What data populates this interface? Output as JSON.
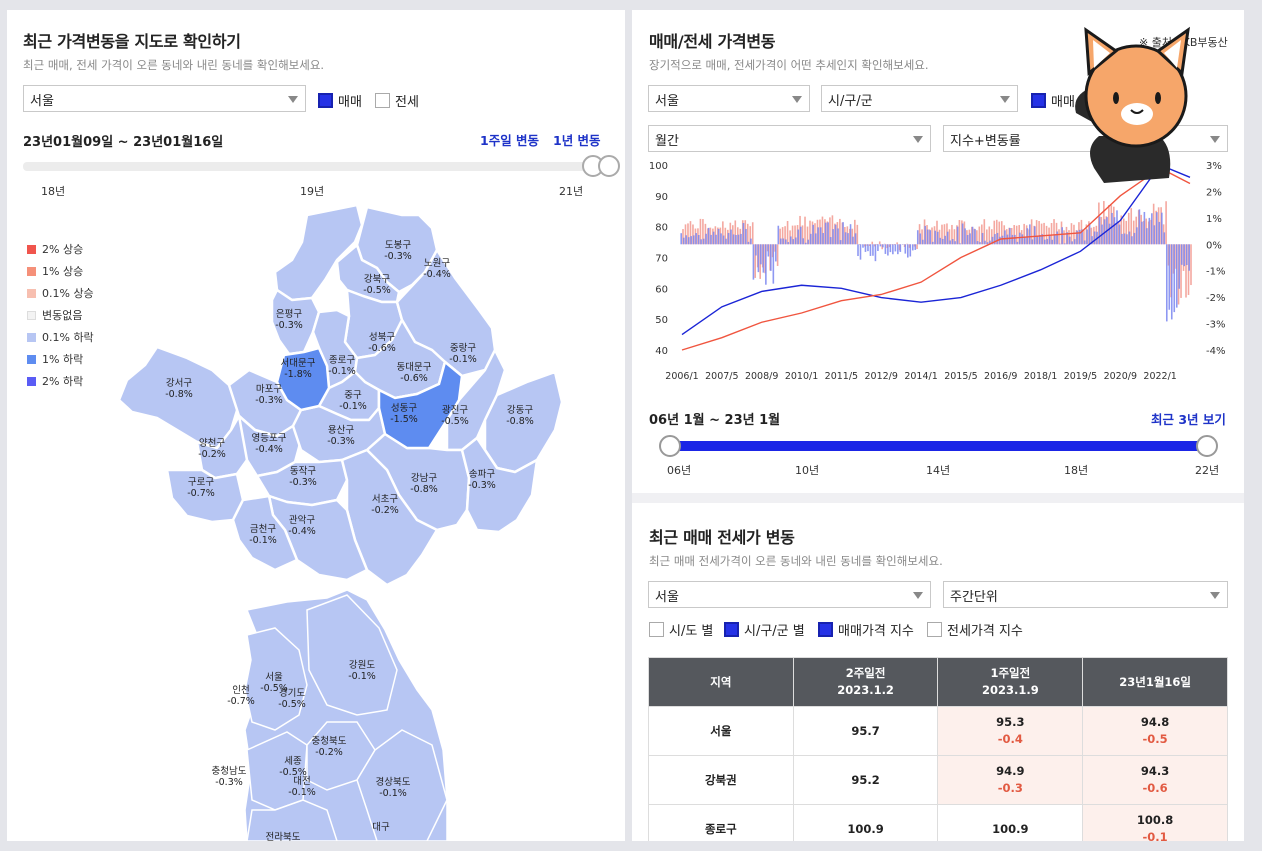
{
  "left": {
    "title": "최근 가격변동을 지도로 확인하기",
    "subtitle": "최근 매매, 전세 가격이 오른 동네와 내린 동네를 확인해보세요.",
    "region_select": "서울",
    "check_sale": "매매",
    "check_jeonse": "전세",
    "period": "23년01월09일 ~ 23년01월16일",
    "link_week": "1주일 변동",
    "link_year": "1년 변동",
    "slider_ticks": [
      "18년",
      "19년",
      "21년"
    ],
    "legend": [
      {
        "label": "2% 상승",
        "color": "#f0554d"
      },
      {
        "label": "1% 상승",
        "color": "#f59079"
      },
      {
        "label": "0.1% 상승",
        "color": "#f7bfb0"
      },
      {
        "label": "변동없음",
        "color": "#f3f3f3"
      },
      {
        "label": "0.1% 하락",
        "color": "#b7c6f3"
      },
      {
        "label": "1% 하락",
        "color": "#5e8cf0"
      },
      {
        "label": "2% 하락",
        "color": "#5a5cf5"
      }
    ],
    "seoul_districts": [
      {
        "name": "도봉구",
        "value": "-0.3%"
      },
      {
        "name": "노원구",
        "value": "-0.4%"
      },
      {
        "name": "강북구",
        "value": "-0.5%"
      },
      {
        "name": "은평구",
        "value": "-0.3%"
      },
      {
        "name": "성북구",
        "value": "-0.6%"
      },
      {
        "name": "중랑구",
        "value": "-0.1%"
      },
      {
        "name": "서대문구",
        "value": "-1.8%"
      },
      {
        "name": "종로구",
        "value": "-0.1%"
      },
      {
        "name": "동대문구",
        "value": "-0.6%"
      },
      {
        "name": "강서구",
        "value": "-0.8%"
      },
      {
        "name": "마포구",
        "value": "-0.3%"
      },
      {
        "name": "중구",
        "value": "-0.1%"
      },
      {
        "name": "성동구",
        "value": "-1.5%"
      },
      {
        "name": "광진구",
        "value": "-0.5%"
      },
      {
        "name": "강동구",
        "value": "-0.8%"
      },
      {
        "name": "양천구",
        "value": "-0.2%"
      },
      {
        "name": "영등포구",
        "value": "-0.4%"
      },
      {
        "name": "용산구",
        "value": "-0.3%"
      },
      {
        "name": "구로구",
        "value": "-0.7%"
      },
      {
        "name": "동작구",
        "value": "-0.3%"
      },
      {
        "name": "강남구",
        "value": "-0.8%"
      },
      {
        "name": "송파구",
        "value": "-0.3%"
      },
      {
        "name": "서초구",
        "value": "-0.2%"
      },
      {
        "name": "관악구",
        "value": "-0.4%"
      },
      {
        "name": "금천구",
        "value": "-0.1%"
      }
    ],
    "korea_regions": [
      {
        "name": "강원도",
        "value": "-0.1%"
      },
      {
        "name": "인천",
        "value": "-0.7%"
      },
      {
        "name": "서울",
        "value": "-0.5%"
      },
      {
        "name": "경기도",
        "value": "-0.5%"
      },
      {
        "name": "충청북도",
        "value": "-0.2%"
      },
      {
        "name": "충청남도",
        "value": "-0.3%"
      },
      {
        "name": "세종",
        "value": "-0.5%"
      },
      {
        "name": "대전",
        "value": "-0.1%"
      },
      {
        "name": "경상북도",
        "value": "-0.1%"
      },
      {
        "name": "대구",
        "value": ""
      },
      {
        "name": "전라북도",
        "value": ""
      }
    ]
  },
  "right": {
    "title": "매매/전세 가격변동",
    "source": "※ 출처 : KB부동산",
    "subtitle": "장기적으로 매매, 전세가격이 어떤 추세인지 확인해보세요.",
    "region_select": "서울",
    "district_select": "시/구/군",
    "check_sale": "매매",
    "period_select": "월간",
    "metric_select": "지수+변동률",
    "range_label": "06년 1월 ~ 23년 1월",
    "recent_link": "최근 3년 보기",
    "range_ticks": [
      "06년",
      "10년",
      "14년",
      "18년",
      "22년"
    ],
    "table_section": {
      "title": "최근 매매 전세가 변동",
      "subtitle": "최근 매매 전세가격이 오른 동네와 내린 동네를 확인해보세요.",
      "region_select": "서울",
      "unit_select": "주간단위",
      "checks": [
        "시/도 별",
        "시/구/군 별",
        "매매가격 지수",
        "전세가격 지수"
      ],
      "headers": [
        {
          "line1": "지역",
          "line2": ""
        },
        {
          "line1": "2주일전",
          "line2": "2023.1.2"
        },
        {
          "line1": "1주일전",
          "line2": "2023.1.9"
        },
        {
          "line1": "23년1월16일",
          "line2": ""
        }
      ],
      "rows": [
        {
          "region": "서울",
          "c1": "95.7",
          "c1chg": "",
          "c2": "95.3",
          "c2chg": "-0.4",
          "c3": "94.8",
          "c3chg": "-0.5"
        },
        {
          "region": "강북권",
          "c1": "95.2",
          "c1chg": "",
          "c2": "94.9",
          "c2chg": "-0.3",
          "c3": "94.3",
          "c3chg": "-0.6"
        },
        {
          "region": "종로구",
          "c1": "100.9",
          "c1chg": "",
          "c2": "100.9",
          "c2chg": "",
          "c3": "100.8",
          "c3chg": "-0.1"
        }
      ]
    }
  },
  "chart_data": {
    "type": "line",
    "x_ticks": [
      "2006/1",
      "2007/5",
      "2008/9",
      "2010/1",
      "2011/5",
      "2012/9",
      "2014/1",
      "2015/5",
      "2016/9",
      "2018/1",
      "2019/5",
      "2020/9",
      "2022/1"
    ],
    "ylim_left": [
      40,
      100
    ],
    "yticks_left": [
      "100",
      "90",
      "80",
      "70",
      "60",
      "50",
      "40"
    ],
    "ylim_right": [
      -4,
      3
    ],
    "yticks_right": [
      "3%",
      "2%",
      "1%",
      "0%",
      "-1%",
      "-2%",
      "-3%",
      "-4%"
    ],
    "series": [
      {
        "kind": "line",
        "color": "#1b25d6",
        "x": [
          "2006/1",
          "2007/5",
          "2008/9",
          "2010/1",
          "2011/5",
          "2012/9",
          "2014/1",
          "2015/5",
          "2016/9",
          "2018/1",
          "2019/5",
          "2020/9",
          "2022/1",
          "2023/1"
        ],
        "values": [
          45,
          54,
          59,
          61,
          60,
          57,
          55.5,
          57,
          61,
          66,
          72,
          82,
          100,
          96
        ]
      },
      {
        "kind": "line",
        "color": "#f0553f",
        "x": [
          "2006/1",
          "2007/5",
          "2008/9",
          "2010/1",
          "2011/5",
          "2012/9",
          "2014/1",
          "2015/5",
          "2016/9",
          "2018/1",
          "2019/5",
          "2020/9",
          "2022/1",
          "2023/1"
        ],
        "values": [
          40,
          44,
          49,
          52,
          56,
          58,
          62,
          70,
          76,
          77,
          78,
          90,
          99,
          94
        ]
      }
    ]
  }
}
